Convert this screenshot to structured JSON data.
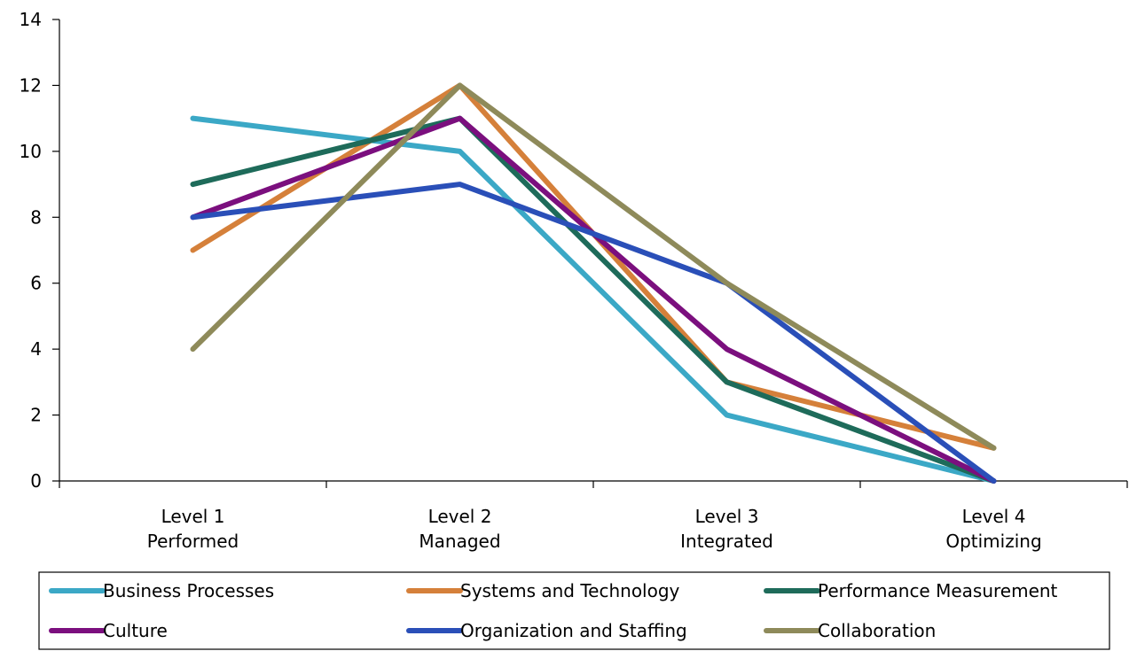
{
  "chart_data": {
    "type": "line",
    "title": "",
    "xlabel": "",
    "ylabel": "",
    "categories": [
      [
        "Level 1",
        "Performed"
      ],
      [
        "Level 2",
        "Managed"
      ],
      [
        "Level 3",
        "Integrated"
      ],
      [
        "Level 4",
        "Optimizing"
      ]
    ],
    "ylim": [
      0,
      14
    ],
    "yticks": [
      0,
      2,
      4,
      6,
      8,
      10,
      12,
      14
    ],
    "grid": false,
    "legend_position": "bottom",
    "series": [
      {
        "name": "Business Processes",
        "color": "#3BA8C6",
        "values": [
          11,
          10,
          2,
          0
        ]
      },
      {
        "name": "Systems and Technology",
        "color": "#D5803A",
        "values": [
          7,
          12,
          3,
          1
        ]
      },
      {
        "name": "Performance Measurement",
        "color": "#1E6B5A",
        "values": [
          9,
          11,
          3,
          0
        ]
      },
      {
        "name": "Culture",
        "color": "#7B0F7E",
        "values": [
          8,
          11,
          4,
          0
        ]
      },
      {
        "name": "Organization and Staffing",
        "color": "#2A4FB8",
        "values": [
          8,
          9,
          6,
          0
        ]
      },
      {
        "name": "Collaboration",
        "color": "#8E8A5A",
        "values": [
          4,
          12,
          6,
          1
        ]
      }
    ]
  }
}
